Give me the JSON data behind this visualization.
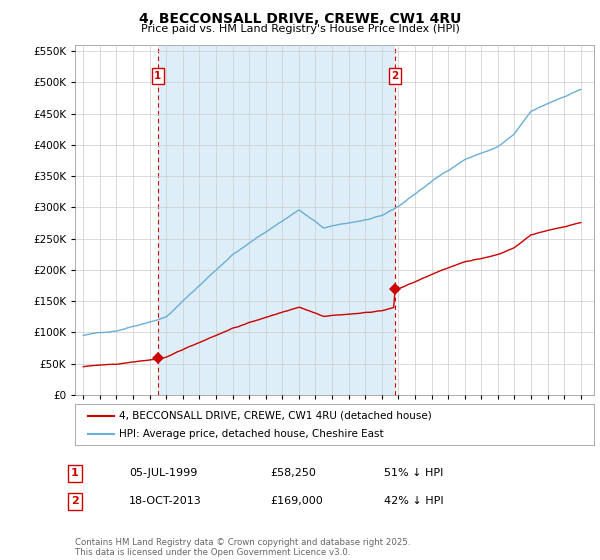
{
  "title": "4, BECCONSALL DRIVE, CREWE, CW1 4RU",
  "subtitle": "Price paid vs. HM Land Registry's House Price Index (HPI)",
  "hpi_label": "HPI: Average price, detached house, Cheshire East",
  "property_label": "4, BECCONSALL DRIVE, CREWE, CW1 4RU (detached house)",
  "hpi_color": "#6aaed6",
  "hpi_fill_color": "#ddeef8",
  "property_color": "#cc0000",
  "marker_color": "#cc0000",
  "annotation_color": "#cc0000",
  "vline_color": "#cc0000",
  "background_color": "#ffffff",
  "grid_color": "#cccccc",
  "purchase1_year": 1999.5,
  "purchase1_price": 58250,
  "purchase1_label": "1",
  "purchase1_date": "05-JUL-1999",
  "purchase1_pct": "51% ↓ HPI",
  "purchase2_year": 2013.8,
  "purchase2_price": 169000,
  "purchase2_label": "2",
  "purchase2_date": "18-OCT-2013",
  "purchase2_pct": "42% ↓ HPI",
  "ylim": [
    0,
    560000
  ],
  "yticks": [
    0,
    50000,
    100000,
    150000,
    200000,
    250000,
    300000,
    350000,
    400000,
    450000,
    500000,
    550000
  ],
  "footer": "Contains HM Land Registry data © Crown copyright and database right 2025.\nThis data is licensed under the Open Government Licence v3.0.",
  "legend1_date": "05-JUL-1999",
  "legend1_price": "£58,250",
  "legend1_pct": "51% ↓ HPI",
  "legend2_date": "18-OCT-2013",
  "legend2_price": "£169,000",
  "legend2_pct": "42% ↓ HPI"
}
